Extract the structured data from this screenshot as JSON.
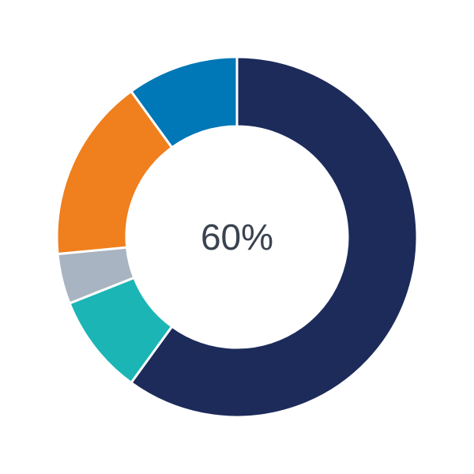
{
  "chart_data": {
    "type": "pie",
    "variant": "donut",
    "center_label": "60%",
    "values": [
      60,
      9,
      4.5,
      16.5,
      10
    ],
    "colors": [
      "#1c2b5a",
      "#1bb5b6",
      "#a9b4c2",
      "#f07f1d",
      "#0077b6"
    ],
    "start_angle": "top",
    "direction": "clockwise"
  }
}
